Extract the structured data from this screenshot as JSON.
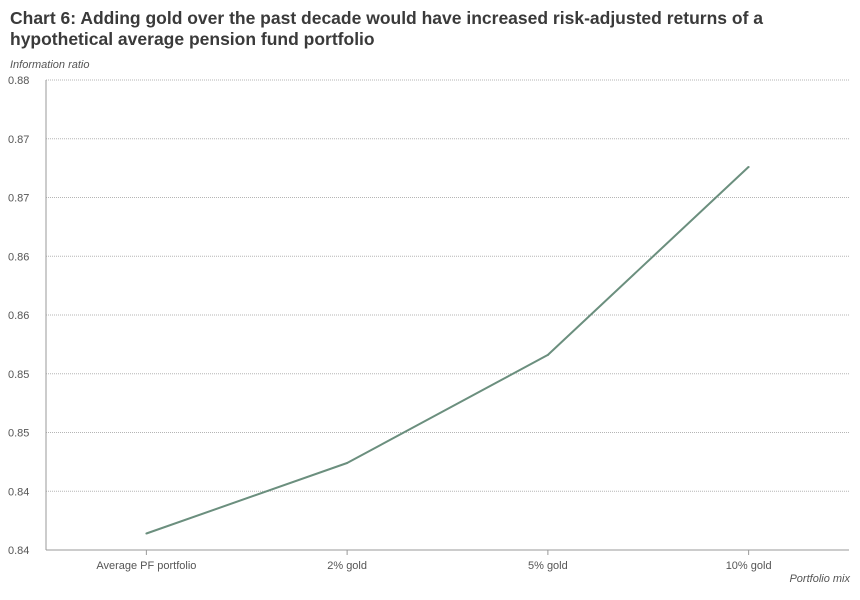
{
  "chart_data": {
    "type": "line",
    "title": "Chart 6: Adding gold over the past decade would have increased risk-adjusted returns of a hypothetical average pension fund portfolio",
    "ylabel": "Information ratio",
    "xlabel": "Portfolio mix",
    "categories": [
      "Average PF portfolio",
      "2% gold",
      "5% gold",
      "10% gold"
    ],
    "series": [
      {
        "values": [
          0.8414,
          0.8474,
          0.8566,
          0.8726
        ]
      }
    ],
    "ylim": [
      0.84,
      0.88
    ],
    "yticks": [
      0.84,
      0.845,
      0.85,
      0.855,
      0.86,
      0.865,
      0.87,
      0.875,
      0.88
    ],
    "ytick_labels": [
      "0.84",
      "0.84",
      "0.85",
      "0.85",
      "0.86",
      "0.86",
      "0.87",
      "0.87",
      "0.88"
    ],
    "grid": true,
    "legend": "none",
    "line_color": "#6b8f7e"
  }
}
